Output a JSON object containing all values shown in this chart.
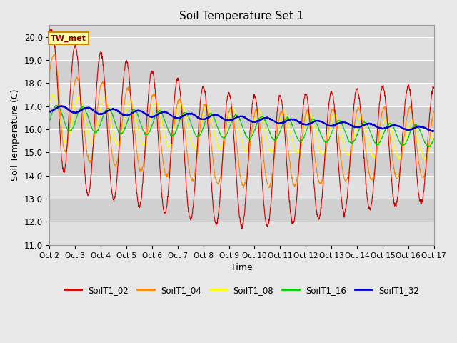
{
  "title": "Soil Temperature Set 1",
  "xlabel": "Time",
  "ylabel": "Soil Temperature (C)",
  "ylim": [
    11.0,
    20.5
  ],
  "yticks": [
    11.0,
    12.0,
    13.0,
    14.0,
    15.0,
    16.0,
    17.0,
    18.0,
    19.0,
    20.0
  ],
  "series_colors": {
    "SoilT1_02": "#cc0000",
    "SoilT1_04": "#ff8800",
    "SoilT1_08": "#ffff00",
    "SoilT1_16": "#00cc00",
    "SoilT1_32": "#0000cc"
  },
  "annotation_label": "TW_met",
  "bg_color": "#e8e8e8",
  "plot_bg_stripes": [
    "#e8e8e8",
    "#d8d8d8"
  ],
  "grid_color": "#ffffff",
  "legend_line_colors": [
    "#cc0000",
    "#ff8800",
    "#ffff00",
    "#00cc00",
    "#0000cc"
  ],
  "legend_labels": [
    "SoilT1_02",
    "SoilT1_04",
    "SoilT1_08",
    "SoilT1_16",
    "SoilT1_32"
  ],
  "x_tick_labels": [
    "Oct 2",
    "Oct 3",
    "Oct 4",
    "Oct 5",
    "Oct 6",
    "Oct 7",
    "Oct 8",
    "Oct 9",
    "Oct 10",
    "Oct 11",
    "Oct 12",
    "Oct 13",
    "Oct 14",
    "Oct 15",
    "Oct 16",
    "Oct 17"
  ],
  "num_points_per_day": 96,
  "num_days": 15
}
